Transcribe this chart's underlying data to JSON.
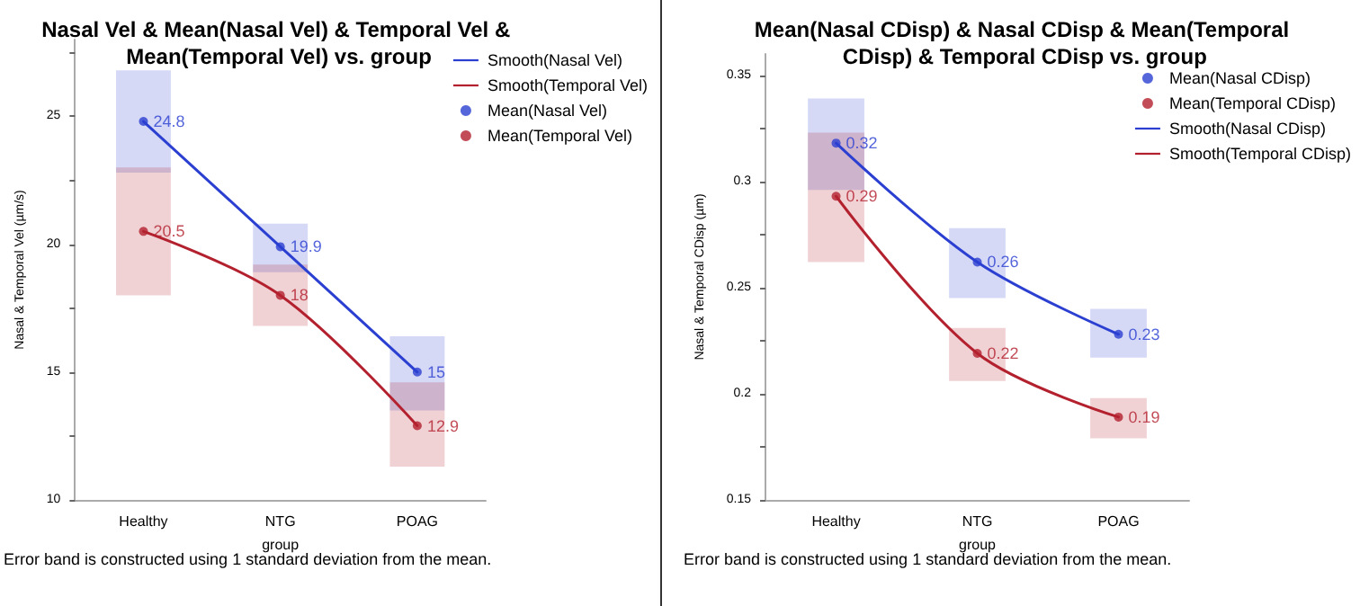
{
  "chart_data": [
    {
      "type": "line",
      "title": "Nasal Vel & Mean(Nasal Vel) & Temporal Vel & Mean(Temporal Vel) vs. group",
      "xlabel": "group",
      "ylabel": "Nasal & Temporal Vel (µm/s)",
      "annotations": [
        "Error band is constructed using 1 standard deviation from the mean."
      ],
      "categories": [
        "Healthy",
        "NTG",
        "POAG"
      ],
      "ylim": [
        10,
        28
      ],
      "yticks": [
        10,
        {
          "value": 12.5,
          "label": null
        },
        15,
        {
          "value": 17.5,
          "label": null
        },
        20,
        {
          "value": 22.5,
          "label": null
        },
        25,
        {
          "value": 27.5,
          "label": null
        }
      ],
      "legend": "right",
      "grid": false,
      "series": [
        {
          "type": "bar",
          "color": "#2b3fd1",
          "base": [
            22.8,
            18.9,
            13.5
          ],
          "values": [
            4.0,
            1.9,
            2.9
          ]
        },
        {
          "type": "bar",
          "color": "#b3202e",
          "base": [
            18,
            16.8,
            11.3
          ],
          "values": [
            5.0,
            2.4,
            3.3
          ]
        },
        {
          "name": "Smooth(Nasal Vel)",
          "marker": "none",
          "color": "#2b3fd1",
          "values": [
            24.8,
            19.9,
            15
          ]
        },
        {
          "name": "Smooth(Temporal Vel)",
          "marker": "none",
          "color": "#b3202e",
          "values": [
            20.5,
            18,
            12.9
          ]
        },
        {
          "name": "Mean(Nasal Vel)",
          "type": "scatter",
          "marker": "circle",
          "color": "#2b3fd1",
          "values": [
            24.8,
            19.9,
            15
          ],
          "data_labels": true
        },
        {
          "name": "Mean(Temporal Vel)",
          "type": "scatter",
          "marker": "circle",
          "color": "#b3202e",
          "values": [
            20.5,
            18,
            12.9
          ],
          "data_labels": true
        }
      ]
    },
    {
      "type": "line",
      "title": "Mean(Nasal CDisp) & Nasal CDisp & Mean(Temporal CDisp) & Temporal CDisp vs. group",
      "xlabel": "group",
      "ylabel": "Nasal & Temporal CDisp (µm)",
      "annotations": [
        "Error band is constructed using 1 standard deviation from the mean."
      ],
      "categories": [
        "Healthy",
        "NTG",
        "POAG"
      ],
      "ylim": [
        0.15,
        0.36
      ],
      "yticks": [
        0.15,
        {
          "value": 0.175,
          "label": null
        },
        0.2,
        {
          "value": 0.225,
          "label": null
        },
        0.25,
        {
          "value": 0.275,
          "label": null
        },
        0.3,
        {
          "value": 0.325,
          "label": null
        },
        0.35
      ],
      "legend": "right",
      "grid": false,
      "series": [
        {
          "type": "bar",
          "color": "#2b3fd1",
          "base": [
            0.296,
            0.245,
            0.217
          ],
          "values": [
            0.043,
            0.033,
            0.023
          ]
        },
        {
          "type": "bar",
          "color": "#b3202e",
          "base": [
            0.262,
            0.206,
            0.179
          ],
          "values": [
            0.061,
            0.025,
            0.019
          ]
        },
        {
          "name": "Mean(Nasal CDisp)",
          "type": "scatter",
          "marker": "circle",
          "color": "#2b3fd1",
          "values": [
            0.318,
            0.262,
            0.228
          ],
          "value_labels": [
            "0.32",
            "0.26",
            "0.23"
          ]
        },
        {
          "name": "Mean(Temporal CDisp)",
          "type": "scatter",
          "marker": "circle",
          "color": "#b3202e",
          "values": [
            0.293,
            0.219,
            0.189
          ],
          "value_labels": [
            "0.29",
            "0.22",
            "0.19"
          ]
        },
        {
          "name": "Smooth(Nasal CDisp)",
          "marker": "none",
          "color": "#2b3fd1",
          "values": [
            0.318,
            0.262,
            0.228
          ]
        },
        {
          "name": "Smooth(Temporal CDisp)",
          "marker": "none",
          "color": "#b3202e",
          "values": [
            0.293,
            0.219,
            0.189
          ]
        }
      ]
    }
  ]
}
